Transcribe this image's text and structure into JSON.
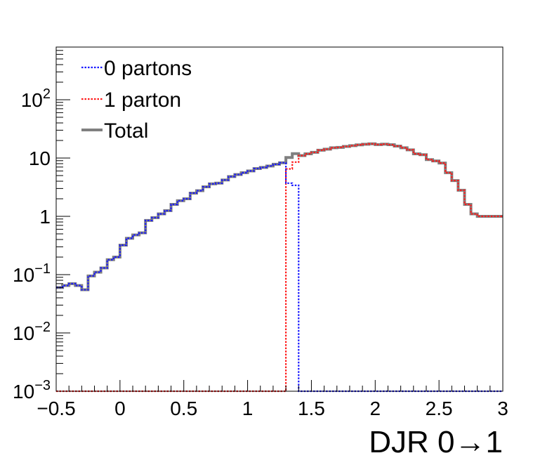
{
  "chart_data": {
    "type": "line",
    "title": "",
    "xlabel": "DJR 0→1",
    "ylabel": "",
    "xlim": [
      -0.5,
      3
    ],
    "ylim": [
      0.001,
      800
    ],
    "log_y": true,
    "grid": false,
    "legend_position": "top-left",
    "x_tick_labels": [
      "−0.5",
      "0",
      "0.5",
      "1",
      "1.5",
      "2",
      "2.5",
      "3"
    ],
    "x_tick_values": [
      -0.5,
      0,
      0.5,
      1,
      1.5,
      2,
      2.5,
      3
    ],
    "y_tick_labels": [
      {
        "base": "10",
        "exp": "−3",
        "value": 0.001
      },
      {
        "base": "10",
        "exp": "−2",
        "value": 0.01
      },
      {
        "base": "10",
        "exp": "−1",
        "value": 0.1
      },
      {
        "base": "1",
        "exp": "",
        "value": 1
      },
      {
        "base": "10",
        "exp": "",
        "value": 10
      },
      {
        "base": "10",
        "exp": "2",
        "value": 100
      }
    ],
    "bin_edges": [
      -0.5,
      -0.45,
      -0.4,
      -0.35,
      -0.3,
      -0.25,
      -0.2,
      -0.15,
      -0.1,
      -0.05,
      0,
      0.05,
      0.1,
      0.15,
      0.2,
      0.25,
      0.3,
      0.35,
      0.4,
      0.45,
      0.5,
      0.55,
      0.6,
      0.65,
      0.7,
      0.75,
      0.8,
      0.85,
      0.9,
      0.95,
      1.0,
      1.05,
      1.1,
      1.15,
      1.2,
      1.25,
      1.3,
      1.35,
      1.4,
      1.45,
      1.5,
      1.55,
      1.6,
      1.65,
      1.7,
      1.75,
      1.8,
      1.85,
      1.9,
      1.95,
      2.0,
      2.05,
      2.1,
      2.15,
      2.2,
      2.25,
      2.3,
      2.35,
      2.4,
      2.45,
      2.5,
      2.55,
      2.6,
      2.65,
      2.7,
      2.75,
      2.8,
      2.85,
      2.9,
      2.95,
      3.0
    ],
    "series": [
      {
        "name": "0 partons",
        "color": "#1a1aff",
        "style": "dotted",
        "values": [
          0.06,
          0.065,
          0.07,
          0.065,
          0.055,
          0.095,
          0.11,
          0.13,
          0.18,
          0.2,
          0.32,
          0.42,
          0.48,
          0.52,
          0.85,
          0.95,
          1.1,
          1.25,
          1.6,
          1.85,
          2.0,
          2.5,
          2.75,
          3.2,
          3.6,
          3.7,
          4.2,
          4.8,
          5.2,
          5.6,
          6.0,
          6.6,
          6.9,
          7.3,
          7.8,
          8.3,
          3.7,
          3.4,
          0.001,
          0.001,
          0.001,
          0.001,
          0.001,
          0.001,
          0.001,
          0.001,
          0.001,
          0.001,
          0.001,
          0.001,
          0.001,
          0.001,
          0.001,
          0.001,
          0.001,
          0.001,
          0.001,
          0.001,
          0.001,
          0.001,
          0.001,
          0.001,
          0.001,
          0.001,
          0.001,
          0.001,
          0.001,
          0.001,
          0.001,
          0.001
        ]
      },
      {
        "name": "1 parton",
        "color": "#ff1a1a",
        "style": "dotted",
        "values": [
          0.001,
          0.001,
          0.001,
          0.001,
          0.001,
          0.001,
          0.001,
          0.001,
          0.001,
          0.001,
          0.001,
          0.001,
          0.001,
          0.001,
          0.001,
          0.001,
          0.001,
          0.001,
          0.001,
          0.001,
          0.001,
          0.001,
          0.001,
          0.001,
          0.001,
          0.001,
          0.001,
          0.001,
          0.001,
          0.001,
          0.001,
          0.001,
          0.001,
          0.001,
          0.001,
          0.001,
          6.5,
          8.5,
          11.0,
          11.8,
          12.5,
          13.6,
          14.2,
          15.0,
          15.2,
          15.8,
          16.3,
          16.8,
          17.2,
          17.5,
          17.0,
          17.3,
          16.9,
          16.0,
          15.0,
          13.8,
          11.8,
          11.4,
          9.4,
          8.9,
          8.2,
          5.6,
          4.1,
          2.8,
          1.6,
          1.1,
          1.0,
          1.0,
          1.0,
          1.0
        ]
      },
      {
        "name": "Total",
        "color": "#808080",
        "style": "solid",
        "values": [
          0.06,
          0.065,
          0.07,
          0.065,
          0.055,
          0.095,
          0.11,
          0.13,
          0.18,
          0.2,
          0.32,
          0.42,
          0.48,
          0.52,
          0.85,
          0.95,
          1.1,
          1.25,
          1.6,
          1.85,
          2.0,
          2.5,
          2.75,
          3.2,
          3.6,
          3.7,
          4.2,
          4.8,
          5.2,
          5.6,
          6.0,
          6.6,
          6.9,
          7.3,
          7.8,
          8.3,
          10.2,
          11.9,
          11.0,
          11.8,
          12.5,
          13.6,
          14.2,
          15.0,
          15.2,
          15.8,
          16.3,
          16.8,
          17.2,
          17.5,
          17.0,
          17.3,
          16.9,
          16.0,
          15.0,
          13.8,
          11.8,
          11.4,
          9.4,
          8.9,
          8.2,
          5.6,
          4.1,
          2.8,
          1.6,
          1.1,
          1.0,
          1.0,
          1.0,
          1.0
        ]
      }
    ]
  }
}
